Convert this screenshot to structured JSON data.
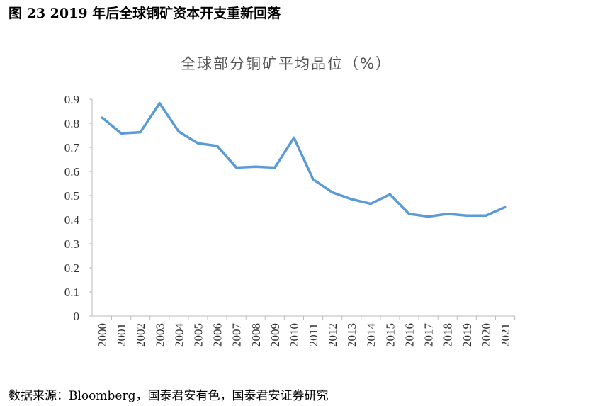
{
  "figure_title": "图 23 2019 年后全球铜矿资本开支重新回落",
  "source": "数据来源：Bloomberg，国泰君安有色，国泰君安证券研究",
  "chart_data": {
    "type": "line",
    "title": "全球部分铜矿平均品位（%）",
    "xlabel": "",
    "ylabel": "",
    "categories": [
      "2000",
      "2001",
      "2002",
      "2003",
      "2004",
      "2005",
      "2006",
      "2007",
      "2008",
      "2009",
      "2010",
      "2011",
      "2012",
      "2013",
      "2014",
      "2015",
      "2016",
      "2017",
      "2018",
      "2019",
      "2020",
      "2021"
    ],
    "values": [
      0.824,
      0.758,
      0.763,
      0.883,
      0.765,
      0.717,
      0.706,
      0.616,
      0.62,
      0.616,
      0.74,
      0.567,
      0.513,
      0.485,
      0.466,
      0.505,
      0.424,
      0.413,
      0.424,
      0.417,
      0.417,
      0.452
    ],
    "yticks": [
      "0",
      "0.1",
      "0.2",
      "0.3",
      "0.4",
      "0.5",
      "0.6",
      "0.7",
      "0.8",
      "0.9"
    ],
    "ylim": [
      0,
      0.9
    ],
    "grid": false,
    "legend": "none",
    "line_color": "#5b9bd5"
  }
}
